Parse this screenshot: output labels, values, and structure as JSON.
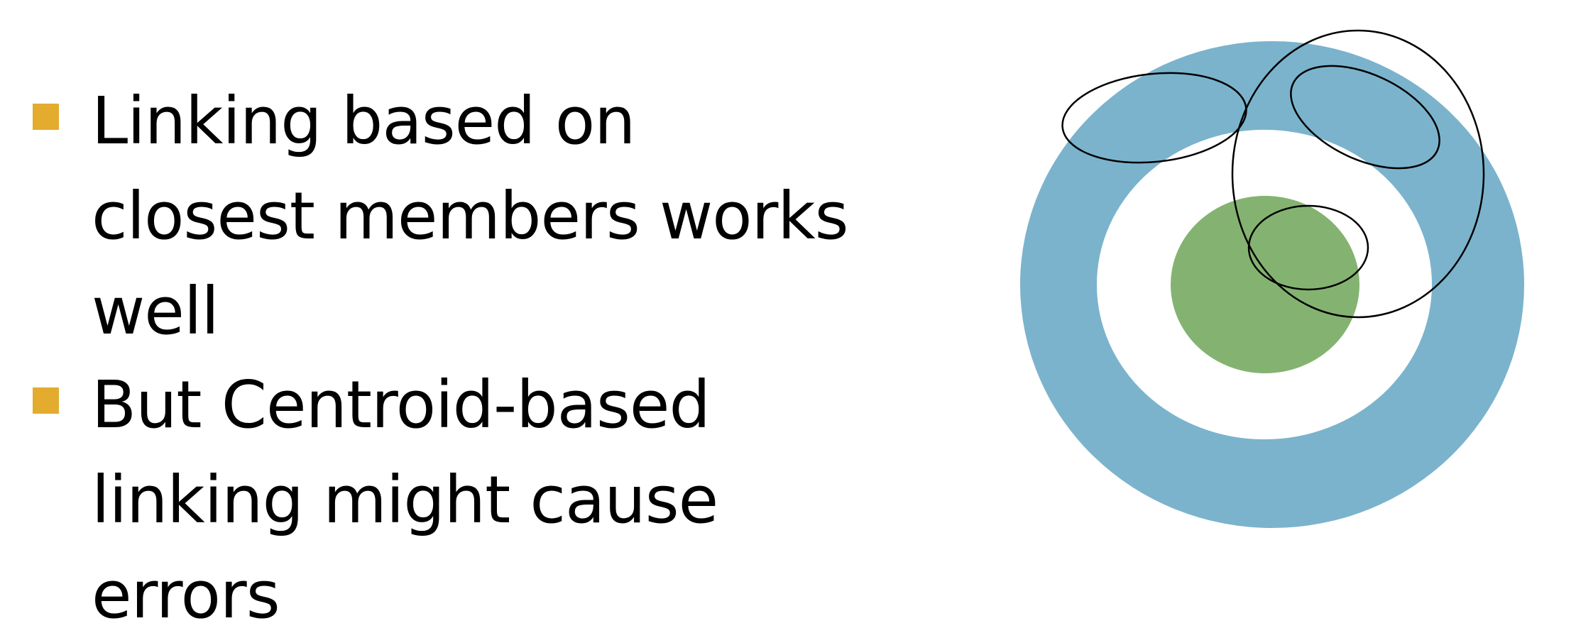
{
  "bullets": [
    {
      "lines": [
        "Linking based on",
        "closest members works",
        "well"
      ]
    },
    {
      "lines": [
        "But Centroid-based",
        "linking might cause",
        "errors"
      ]
    }
  ],
  "colors": {
    "bullet_marker": "#E3AC2F",
    "outer_ring": "#7BB3CC",
    "inner_core": "#84B371",
    "cluster_outline": "#000000",
    "background": "#FFFFFF"
  }
}
